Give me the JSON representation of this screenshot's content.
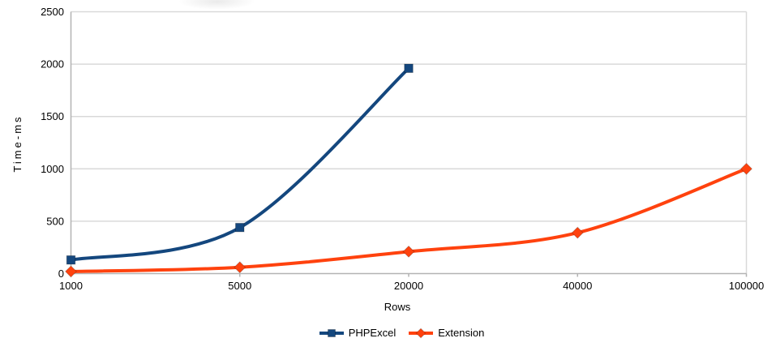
{
  "chart_data": {
    "type": "line",
    "title": "",
    "xlabel": "Rows",
    "ylabel": "Time-ms",
    "categories": [
      "1000",
      "5000",
      "20000",
      "40000",
      "100000"
    ],
    "yticks": [
      0,
      500,
      1000,
      1500,
      2000,
      2500
    ],
    "ylim": [
      0,
      2500
    ],
    "grid": true,
    "line_smoothing": "spline",
    "legend_position": "bottom",
    "series": [
      {
        "name": "PHPExcel",
        "color": "#14477E",
        "marker": "square",
        "values": [
          130,
          440,
          1960,
          null,
          null
        ]
      },
      {
        "name": "Extension",
        "color": "#FF420E",
        "marker": "diamond",
        "values": [
          20,
          60,
          210,
          390,
          1000
        ]
      }
    ]
  },
  "styles": {
    "grid_color": "#d9d9d9",
    "axis_color": "#b3b3b3",
    "text_color": "#000000",
    "background": "#ffffff"
  }
}
